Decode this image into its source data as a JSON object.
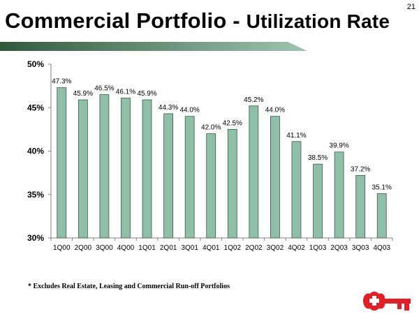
{
  "slide": {
    "page_number": "21",
    "title_part1": "Commercial Portfolio - ",
    "title_part2": "Utilization Rate",
    "footnote": "* Excludes Real Estate, Leasing and Commercial Run-off Portfolios",
    "logo": "key-logo-icon",
    "colors": {
      "bar_fill": "#8fbfa8",
      "bar_stroke": "#3a5a4a",
      "banner_dark": "#2f5a3c",
      "banner_light": "#9cc6b0",
      "logo_red": "#e41e26"
    }
  },
  "chart_data": {
    "type": "bar",
    "title": "Commercial Portfolio - Utilization Rate",
    "xlabel": "",
    "ylabel": "",
    "categories": [
      "1Q00",
      "2Q00",
      "3Q00",
      "4Q00",
      "1Q01",
      "2Q01",
      "3Q01",
      "4Q01",
      "1Q02",
      "2Q02",
      "3Q02",
      "4Q02",
      "1Q03",
      "2Q03",
      "3Q03",
      "4Q03"
    ],
    "values": [
      47.3,
      45.9,
      46.5,
      46.1,
      45.9,
      44.3,
      44.0,
      42.0,
      42.5,
      45.2,
      44.0,
      41.1,
      38.5,
      39.9,
      37.2,
      35.1
    ],
    "data_labels": [
      "47.3%",
      "45.9%",
      "46.5%",
      "46.1%",
      "45.9%",
      "44.3%",
      "44.0%",
      "42.0%",
      "42.5%",
      "45.2%",
      "44.0%",
      "41.1%",
      "38.5%",
      "39.9%",
      "37.2%",
      "35.1%"
    ],
    "ylim": [
      30,
      50
    ],
    "yticks": [
      30,
      35,
      40,
      45,
      50
    ],
    "ytick_labels": [
      "30%",
      "35%",
      "40%",
      "45%",
      "50%"
    ],
    "grid": false,
    "legend": "none"
  }
}
